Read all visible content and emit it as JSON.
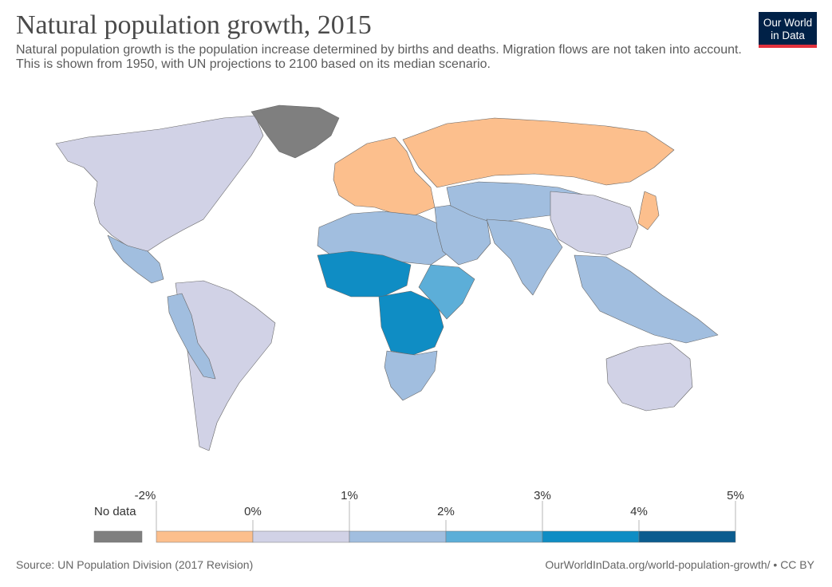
{
  "header": {
    "title": "Natural population growth, 2015",
    "subtitle": "Natural population growth is the population increase determined by births and deaths. Migration flows are not taken into account. This is shown from 1950, with UN projections to 2100 based on its median scenario."
  },
  "logo": {
    "line1": "Our World",
    "line2": "in Data"
  },
  "legend": {
    "no_data_label": "No data",
    "no_data_color": "#7f7f7f",
    "bins": [
      {
        "from": -2,
        "to": 0,
        "color": "#fcbf8d"
      },
      {
        "from": 0,
        "to": 1,
        "color": "#d1d2e6"
      },
      {
        "from": 1,
        "to": 2,
        "color": "#a1bedf"
      },
      {
        "from": 2,
        "to": 3,
        "color": "#5caed8"
      },
      {
        "from": 3,
        "to": 4,
        "color": "#0f8dc4"
      },
      {
        "from": 4,
        "to": 5,
        "color": "#0b5c8f"
      }
    ],
    "tick_labels": [
      "-2%",
      "0%",
      "1%",
      "2%",
      "3%",
      "4%",
      "5%"
    ]
  },
  "regions": [
    {
      "name": "north-america",
      "category": "0% to 1%",
      "color": "#d1d2e6"
    },
    {
      "name": "greenland",
      "category": "No data",
      "color": "#7f7f7f"
    },
    {
      "name": "central-america",
      "category": "1% to 2%",
      "color": "#a1bedf"
    },
    {
      "name": "south-america",
      "category": "0% to 1%",
      "color": "#d1d2e6"
    },
    {
      "name": "andes",
      "category": "1% to 2%",
      "color": "#a1bedf"
    },
    {
      "name": "europe",
      "category": "-2% to 0%",
      "color": "#fcbf8d"
    },
    {
      "name": "russia",
      "category": "-2% to 0%",
      "color": "#fcbf8d"
    },
    {
      "name": "north-africa",
      "category": "1% to 2%",
      "color": "#a1bedf"
    },
    {
      "name": "west-africa",
      "category": "3% to 4%",
      "color": "#0f8dc4"
    },
    {
      "name": "central-africa",
      "category": "3% to 4%",
      "color": "#0f8dc4"
    },
    {
      "name": "east-africa",
      "category": "2% to 3%",
      "color": "#5caed8"
    },
    {
      "name": "southern-africa",
      "category": "1% to 2%",
      "color": "#a1bedf"
    },
    {
      "name": "middle-east",
      "category": "1% to 2%",
      "color": "#a1bedf"
    },
    {
      "name": "central-asia",
      "category": "1% to 2%",
      "color": "#a1bedf"
    },
    {
      "name": "south-asia",
      "category": "1% to 2%",
      "color": "#a1bedf"
    },
    {
      "name": "china",
      "category": "0% to 1%",
      "color": "#d1d2e6"
    },
    {
      "name": "japan",
      "category": "-2% to 0%",
      "color": "#fcbf8d"
    },
    {
      "name": "southeast-asia",
      "category": "1% to 2%",
      "color": "#a1bedf"
    },
    {
      "name": "australia",
      "category": "0% to 1%",
      "color": "#d1d2e6"
    }
  ],
  "footer": {
    "source": "Source: UN Population Division (2017 Revision)",
    "url": "OurWorldInData.org/world-population-growth/ • CC BY"
  }
}
